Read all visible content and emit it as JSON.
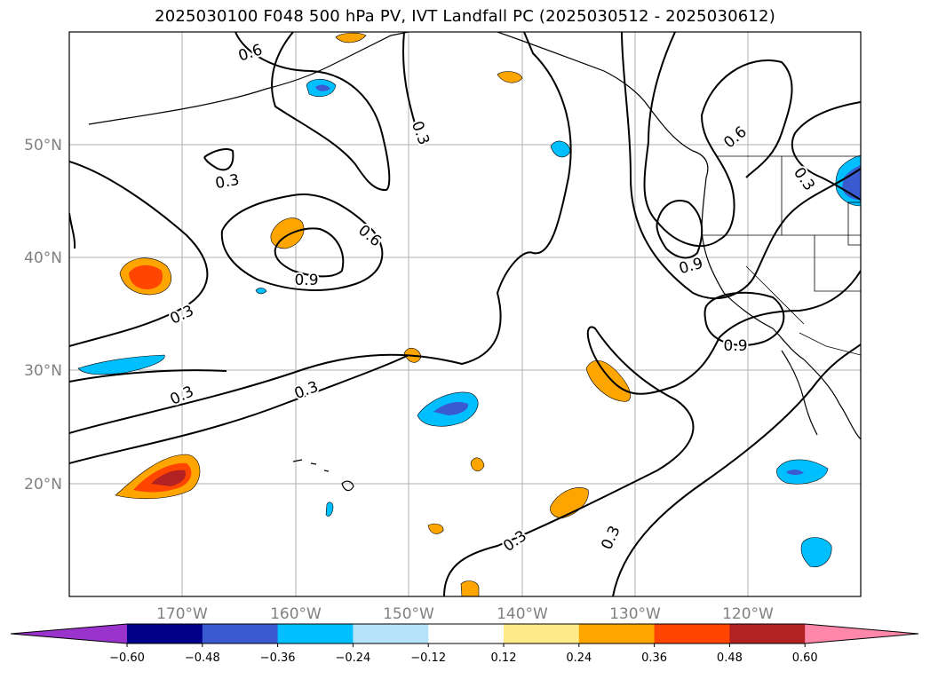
{
  "title": "2025030100 F048 500 hPa PV, IVT Landfall PC (2025030512 - 2025030612)",
  "map": {
    "lon_labels": [
      "170°W",
      "160°W",
      "150°W",
      "140°W",
      "130°W",
      "120°W"
    ],
    "lat_labels": [
      "50°N",
      "40°N",
      "30°N",
      "20°N"
    ],
    "contour_labels": [
      "0.6",
      "0.3",
      "0.3",
      "0.6",
      "0.9",
      "0.3",
      "0.3",
      "0.3",
      "0.6",
      "0.3",
      "0.9",
      "0.9",
      "0.3",
      "0.3"
    ]
  },
  "colorbar": {
    "colors": [
      "#9933cc",
      "#00008b",
      "#3a5bcf",
      "#00bfff",
      "#b3e2fa",
      "#ffffff",
      "#ffea8a",
      "#ffa500",
      "#ff4500",
      "#b22222",
      "#ff88aa"
    ],
    "ticks": [
      "−0.60",
      "−0.48",
      "−0.36",
      "−0.24",
      "−0.12",
      "0.12",
      "0.24",
      "0.36",
      "0.48",
      "0.60"
    ]
  }
}
